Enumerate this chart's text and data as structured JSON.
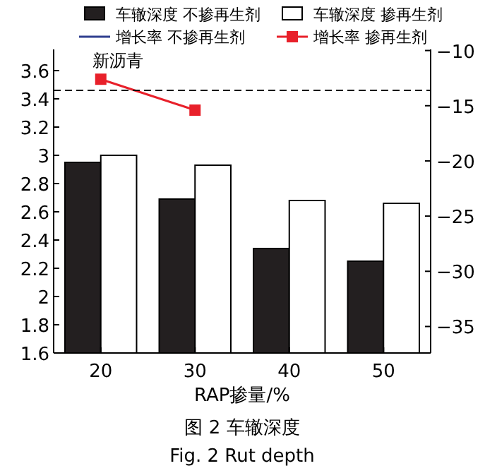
{
  "chart_data": {
    "type": "bar",
    "xlabel": "RAP掺量/%",
    "categories": [
      "20",
      "30",
      "40",
      "50"
    ],
    "ylim": [
      1.6,
      3.75
    ],
    "yticks": [
      1.6,
      1.8,
      2.0,
      2.2,
      2.4,
      2.6,
      2.8,
      3.0,
      3.2,
      3.4,
      3.6
    ],
    "y2lim": [
      -37.4,
      -9.9
    ],
    "y2ticks": [
      -35,
      -30,
      -25,
      -20,
      -15,
      -10
    ],
    "series": [
      {
        "name": "车辙深度 不掺再生剂",
        "color": "#231f20",
        "values": [
          2.95,
          2.69,
          2.34,
          2.25
        ]
      },
      {
        "name": "车辙深度 掺再生剂",
        "color": "#ffffff",
        "values": [
          3.0,
          2.93,
          2.68,
          2.66
        ]
      },
      {
        "name": "增长率 不掺再生剂",
        "type": "line",
        "axis": "y2",
        "color": "#2f3f8f",
        "values": [
          null,
          null,
          null,
          null
        ]
      },
      {
        "name": "增长率 掺再生剂",
        "type": "line",
        "axis": "y2",
        "marker": "square",
        "color": "#e8202a",
        "values": [
          -12.6,
          -15.4,
          null,
          null
        ]
      }
    ],
    "ref_lines": [
      {
        "axis": "y",
        "value": 3.46,
        "line_style": "dashed",
        "color": "#000000"
      }
    ],
    "annotations": [
      "新沥青",
      "图 2 车辙深度",
      "Fig. 2 Rut depth"
    ],
    "legend": "top",
    "grid": false
  }
}
